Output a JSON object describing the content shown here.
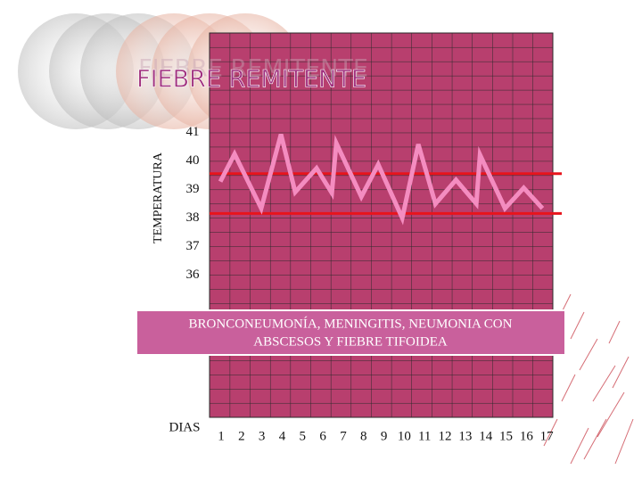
{
  "chart_data": {
    "type": "line",
    "title": "FIEBRE REMITENTE",
    "y_label": "TEMPERATURA",
    "x_label": "DIAS",
    "annotation": [
      "BRONCONEUMONÍA, MENINGITIS, NEUMONIA CON",
      "ABSCESOS Y FIEBRE TIFOIDEA"
    ],
    "xlim": [
      0.43,
      17.3
    ],
    "xticks": [
      1,
      2,
      3,
      4,
      5,
      6,
      7,
      8,
      9,
      10,
      11,
      12,
      13,
      14,
      15,
      16,
      17
    ],
    "ylim": [
      31,
      44.5
    ],
    "yticks": [
      36,
      37,
      38,
      39,
      40,
      41
    ],
    "reference_lines": {
      "color": "#e8141c",
      "values": [
        39.56,
        38.16
      ]
    },
    "series": [
      {
        "color": "#f48cc0",
        "x": [
          0.96,
          1.66,
          2.97,
          3.94,
          4.64,
          5.69,
          6.44,
          6.66,
          7.89,
          8.72,
          9.9,
          10.69,
          11.53,
          12.54,
          13.54,
          13.72,
          14.95,
          15.87,
          16.79
        ],
        "values": [
          39.28,
          40.25,
          38.34,
          40.94,
          38.91,
          39.75,
          38.88,
          40.63,
          38.75,
          39.88,
          38.0,
          40.59,
          38.5,
          39.34,
          38.5,
          40.22,
          38.34,
          39.06,
          38.34
        ]
      }
    ]
  }
}
